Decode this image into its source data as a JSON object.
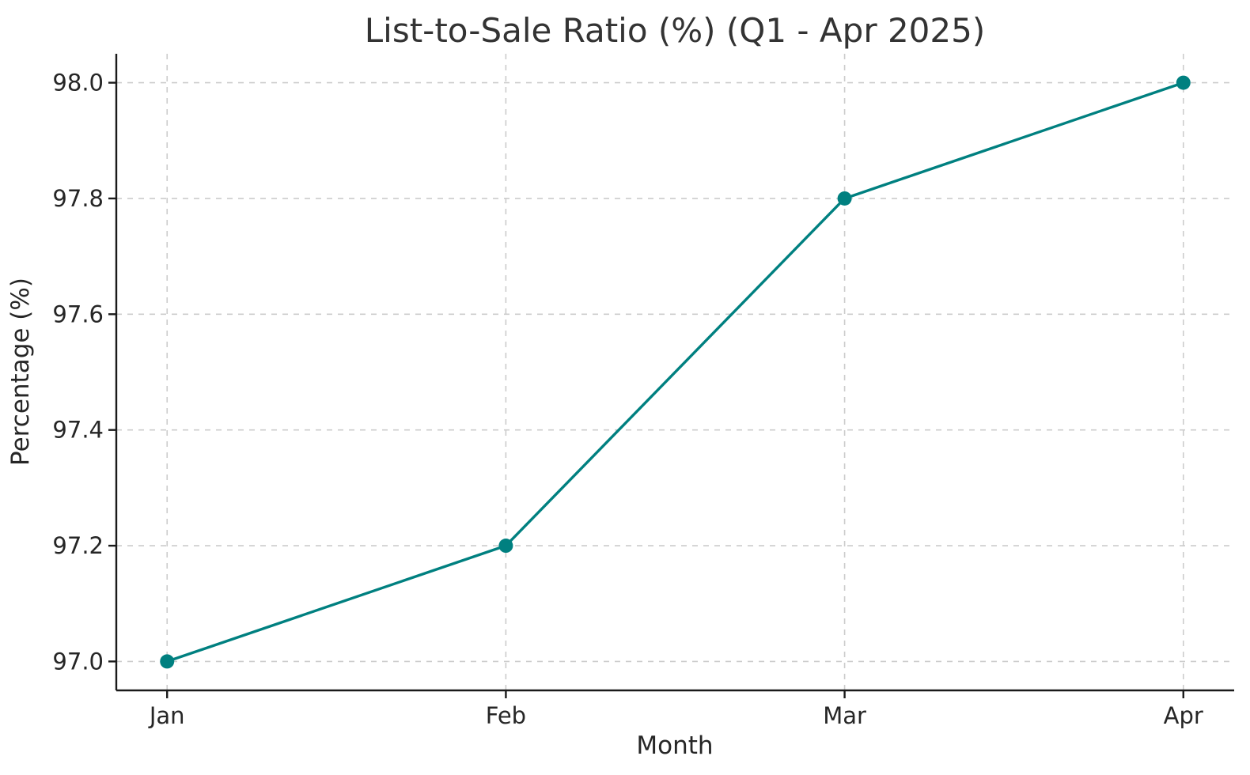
{
  "figure": {
    "background": "#ffffff"
  },
  "chart_data": {
    "type": "line",
    "title": "List-to-Sale Ratio (%) (Q1 - Apr 2025)",
    "xlabel": "Month",
    "ylabel": "Percentage (%)",
    "categories": [
      "Jan",
      "Feb",
      "Mar",
      "Apr"
    ],
    "series": [
      {
        "name": "List-to-Sale Ratio (%)",
        "values": [
          97.0,
          97.2,
          97.8,
          98.0
        ],
        "color": "#008080",
        "marker": "circle",
        "line_style": "solid"
      }
    ],
    "yticks": [
      97.0,
      97.2,
      97.4,
      97.6,
      97.8,
      98.0
    ],
    "ytick_labels": [
      "97.0",
      "97.2",
      "97.4",
      "97.6",
      "97.8",
      "98.0"
    ],
    "ylim": [
      96.95,
      98.05
    ],
    "xlim": [
      -0.15,
      3.15
    ],
    "grid": true,
    "grid_style": "dashed",
    "grid_color": "#cccccc",
    "axis_color": "#1a1a1a",
    "text_color": "#262626",
    "title_color": "#333333",
    "legend_position": "none",
    "spines": [
      "left",
      "bottom"
    ]
  }
}
